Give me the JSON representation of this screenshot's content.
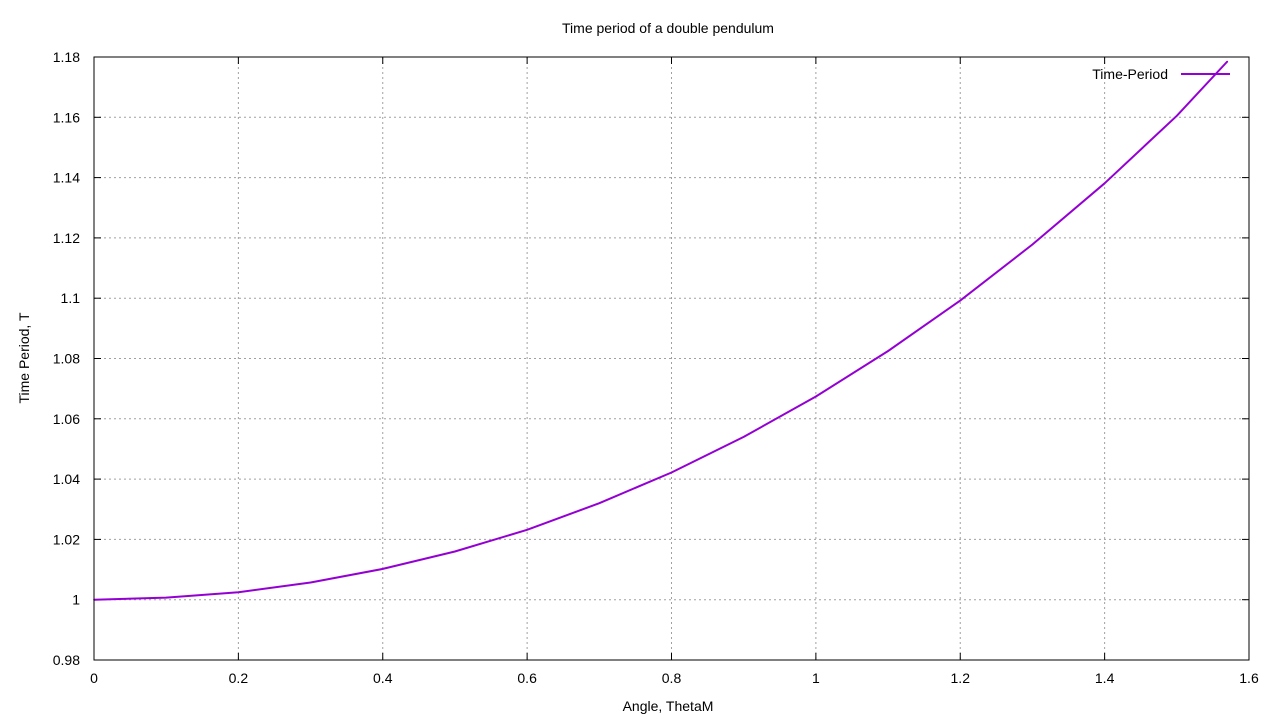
{
  "chart_data": {
    "type": "line",
    "title": "Time period of a double pendulum",
    "xlabel": "Angle, ThetaM",
    "ylabel": "Time Period, T",
    "xlim": [
      0,
      1.6
    ],
    "ylim": [
      0.98,
      1.18
    ],
    "x_ticks": [
      "0",
      "0.2",
      "0.4",
      "0.6",
      "0.8",
      "1",
      "1.2",
      "1.4",
      "1.6"
    ],
    "y_ticks": [
      "0.98",
      "1",
      "1.02",
      "1.04",
      "1.06",
      "1.08",
      "1.1",
      "1.12",
      "1.14",
      "1.16",
      "1.18"
    ],
    "grid": true,
    "legend_position": "top-right",
    "series": [
      {
        "name": "Time-Period",
        "color": "#9400d3",
        "x": [
          0,
          0.1,
          0.2,
          0.3,
          0.4,
          0.5,
          0.6,
          0.7,
          0.8,
          0.9,
          1.0,
          1.1,
          1.2,
          1.3,
          1.4,
          1.5,
          1.57
        ],
        "y": [
          1.0,
          1.0007,
          1.0025,
          1.0057,
          1.0102,
          1.016,
          1.0232,
          1.032,
          1.0422,
          1.054,
          1.0674,
          1.0825,
          1.0992,
          1.1178,
          1.1381,
          1.1605,
          1.1785
        ]
      }
    ]
  }
}
